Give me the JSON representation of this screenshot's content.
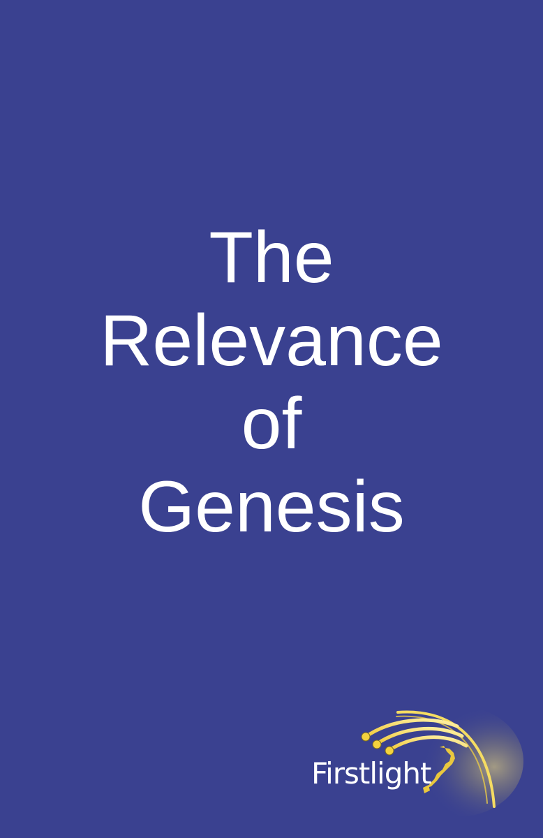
{
  "cover": {
    "background": "#3a4190",
    "title_lines": [
      "The",
      "Relevance",
      "of",
      "Genesis"
    ],
    "title_color": "#ffffff"
  },
  "logo": {
    "text": "Firstlight",
    "text_color": "#ffffff",
    "accent_color": "#f2d24a",
    "icon": "firstlight-comet-icon"
  }
}
